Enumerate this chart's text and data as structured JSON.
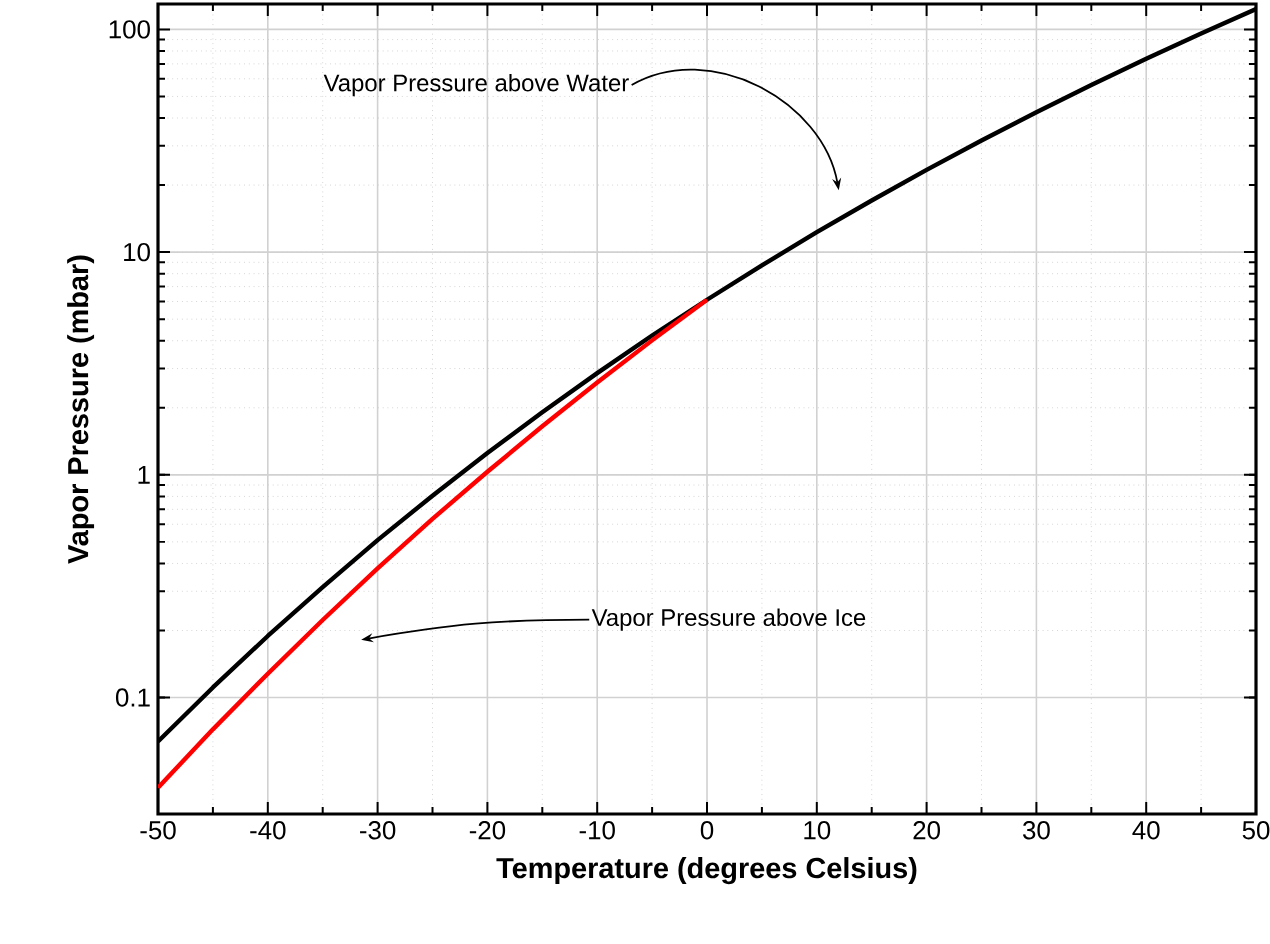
{
  "chart_data": {
    "type": "line",
    "xlabel": "Temperature (degrees Celsius)",
    "ylabel": "Vapor Pressure (mbar)",
    "log": "y",
    "grid": true,
    "xlim": [
      -50,
      50
    ],
    "ylim": [
      0.03,
      130
    ],
    "xticks": [
      -50,
      -40,
      -30,
      -20,
      -10,
      0,
      10,
      20,
      30,
      40,
      50
    ],
    "yticks": [
      0.1,
      1,
      10,
      100
    ],
    "series": [
      {
        "color": "#000000",
        "x": [
          -50,
          -45,
          -40,
          -35,
          -30,
          -25,
          -20,
          -15,
          -10,
          -5,
          0,
          5,
          10,
          15,
          20,
          25,
          30,
          35,
          40,
          45,
          50
        ],
        "values": [
          0.0635,
          0.111,
          0.189,
          0.313,
          0.509,
          0.806,
          1.254,
          1.91,
          2.863,
          4.22,
          6.112,
          8.72,
          12.28,
          17.05,
          23.39,
          31.7,
          42.46,
          56.3,
          73.85,
          95.9,
          123.4
        ]
      },
      {
        "color": "#ff0000",
        "x": [
          -50,
          -45,
          -40,
          -35,
          -30,
          -25,
          -20,
          -15,
          -10,
          -5,
          0
        ],
        "values": [
          0.0394,
          0.072,
          0.128,
          0.223,
          0.38,
          0.634,
          1.032,
          1.652,
          2.597,
          4.015,
          6.112
        ]
      }
    ],
    "annotations": [
      "Vapor Pressure above Water",
      "Vapor Pressure above Ice"
    ]
  }
}
